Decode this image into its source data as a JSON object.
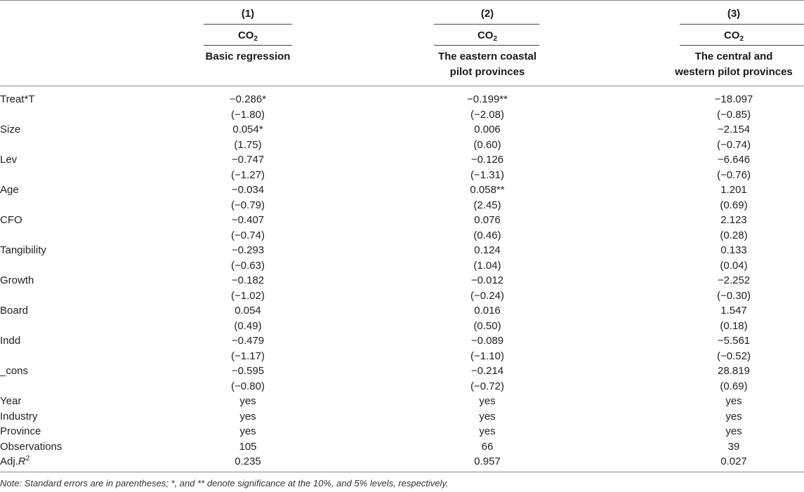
{
  "columns": [
    {
      "number": "(1)",
      "dep_main": "CO",
      "dep_sub": "2",
      "desc_line1": "Basic regression",
      "desc_line2": ""
    },
    {
      "number": "(2)",
      "dep_main": "CO",
      "dep_sub": "2",
      "desc_line1": "The eastern coastal",
      "desc_line2": "pilot provinces"
    },
    {
      "number": "(3)",
      "dep_main": "CO",
      "dep_sub": "2",
      "desc_line1": "The central and",
      "desc_line2": "western pilot provinces"
    }
  ],
  "rows": [
    {
      "label": "Treat*T",
      "values": [
        "−0.286*",
        "−0.199**",
        "−18.097"
      ]
    },
    {
      "label": "",
      "values": [
        "(−1.80)",
        "(−2.08)",
        "(−0.85)"
      ]
    },
    {
      "label": "Size",
      "values": [
        "0.054*",
        "0.006",
        "−2.154"
      ]
    },
    {
      "label": "",
      "values": [
        "(1.75)",
        "(0.60)",
        "(−0.74)"
      ]
    },
    {
      "label": "Lev",
      "values": [
        "−0.747",
        "−0.126",
        "−6.646"
      ]
    },
    {
      "label": "",
      "values": [
        "(−1.27)",
        "(−1.31)",
        "(−0.76)"
      ]
    },
    {
      "label": "Age",
      "values": [
        "−0.034",
        "0.058**",
        "1.201"
      ]
    },
    {
      "label": "",
      "values": [
        "(−0.79)",
        "(2.45)",
        "(0.69)"
      ]
    },
    {
      "label": "CFO",
      "values": [
        "−0.407",
        "0.076",
        "2.123"
      ]
    },
    {
      "label": "",
      "values": [
        "(−0.74)",
        "(0.46)",
        "(0.28)"
      ]
    },
    {
      "label": "Tangibility",
      "values": [
        "−0.293",
        "0.124",
        "0.133"
      ]
    },
    {
      "label": "",
      "values": [
        "(−0.63)",
        "(1.04)",
        "(0.04)"
      ]
    },
    {
      "label": "Growth",
      "values": [
        "−0.182",
        "−0.012",
        "−2.252"
      ]
    },
    {
      "label": "",
      "values": [
        "(−1.02)",
        "(−0.24)",
        "(−0.30)"
      ]
    },
    {
      "label": "Board",
      "values": [
        "0.054",
        "0.016",
        "1.547"
      ]
    },
    {
      "label": "",
      "values": [
        "(0.49)",
        "(0.50)",
        "(0.18)"
      ]
    },
    {
      "label": "Indd",
      "values": [
        "−0.479",
        "−0.089",
        "−5.561"
      ]
    },
    {
      "label": "",
      "values": [
        "(−1.17)",
        "(−1.10)",
        "(−0.52)"
      ]
    },
    {
      "label": "_cons",
      "values": [
        "−0.595",
        "−0.214",
        "28.819"
      ]
    },
    {
      "label": "",
      "values": [
        "(−0.80)",
        "(−0.72)",
        "(0.69)"
      ]
    },
    {
      "label": "Year",
      "values": [
        "yes",
        "yes",
        "yes"
      ]
    },
    {
      "label": "Industry",
      "values": [
        "yes",
        "yes",
        "yes"
      ]
    },
    {
      "label": "Province",
      "values": [
        "yes",
        "yes",
        "yes"
      ]
    },
    {
      "label": "Observations",
      "values": [
        "105",
        "66",
        "39"
      ]
    }
  ],
  "adj_row": {
    "label_prefix": "Adj.",
    "label_italic": "R",
    "label_sup": "2",
    "values": [
      "0.235",
      "0.957",
      "0.027"
    ]
  },
  "note": "Note: Standard errors are in parentheses; *, and ** denote significance at the 10%, and 5% levels, respectively."
}
